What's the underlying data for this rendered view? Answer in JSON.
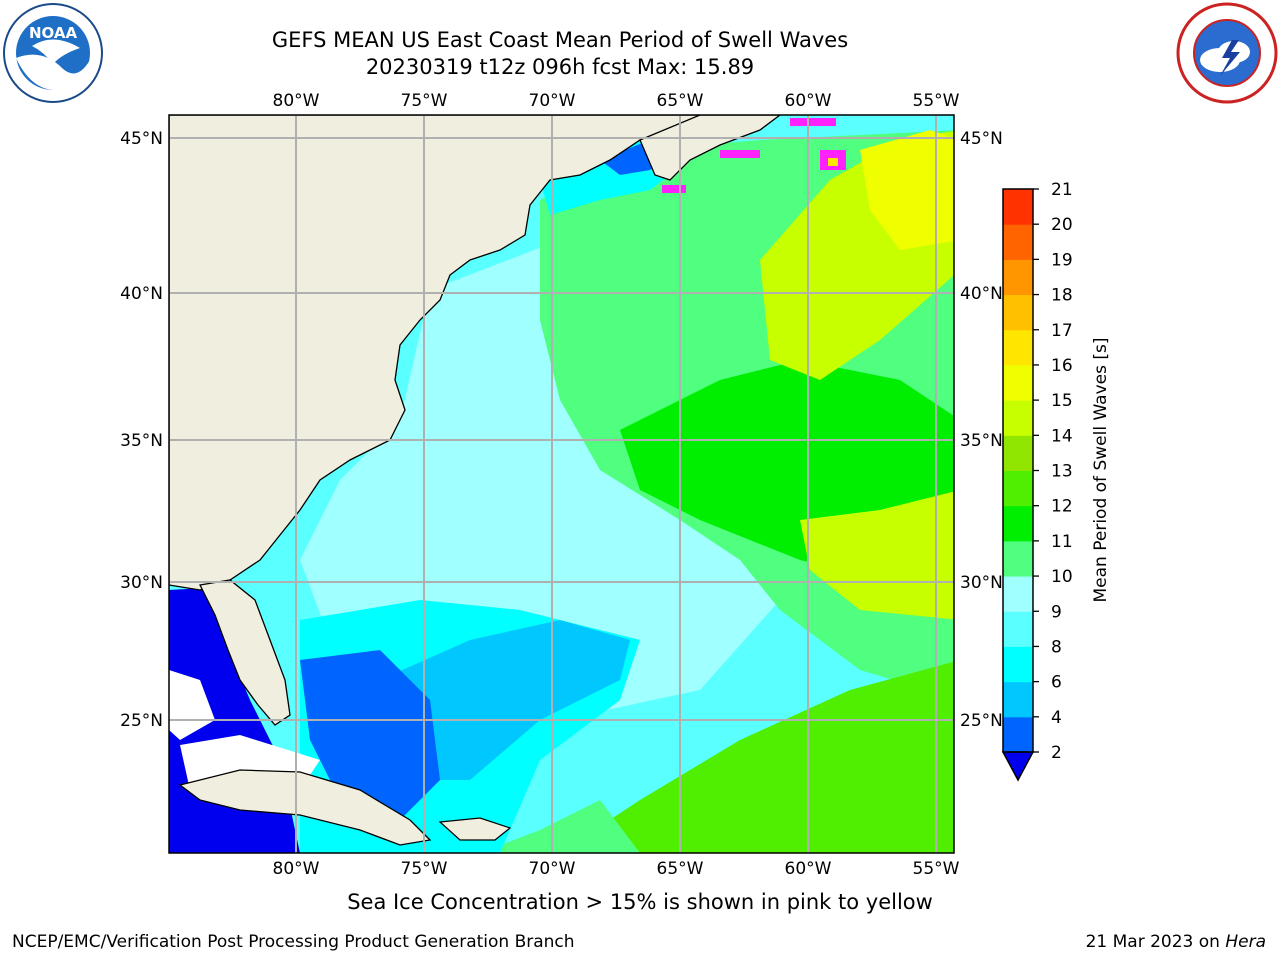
{
  "header": {
    "title_line1": "GEFS MEAN US East Coast Mean Period of Swell Waves",
    "title_line2": "20230319 t12z 096h fcst   Max: 15.89"
  },
  "logos": {
    "left": "noaa-logo",
    "left_text": "NOAA",
    "right": "national-weather-service-logo"
  },
  "map": {
    "lon_labels": [
      "80°W",
      "75°W",
      "70°W",
      "65°W",
      "60°W",
      "55°W"
    ],
    "lat_labels": [
      "45°N",
      "40°N",
      "35°N",
      "30°N",
      "25°N"
    ],
    "lon_range": [
      -85,
      -54.2
    ],
    "lat_range": [
      20.4,
      46.1
    ],
    "gridlines": true,
    "land_color": "#efeedf",
    "grid_color": "#b0b0b0"
  },
  "colorbar": {
    "label": "Mean Period of Swell Waves [s]",
    "ticks": [
      "2",
      "4",
      "6",
      "8",
      "9",
      "10",
      "11",
      "12",
      "13",
      "14",
      "15",
      "16",
      "17",
      "18",
      "19",
      "20",
      "21"
    ],
    "colors": [
      "#0064ff",
      "#00c8ff",
      "#00ffff",
      "#5affff",
      "#a0ffff",
      "#50ff80",
      "#00ee00",
      "#50ee00",
      "#90e600",
      "#c8ff00",
      "#f0ff00",
      "#ffe600",
      "#ffc000",
      "#ff9600",
      "#ff6400",
      "#ff3200",
      "#ff0000"
    ],
    "extend_color": "#0000ee"
  },
  "footer": {
    "note": "Sea Ice Concentration > 15% is shown in pink to yellow",
    "credit": "NCEP/EMC/Verification Post Processing Product Generation Branch",
    "date": "21 Mar 2023 on",
    "host": "Hera"
  }
}
